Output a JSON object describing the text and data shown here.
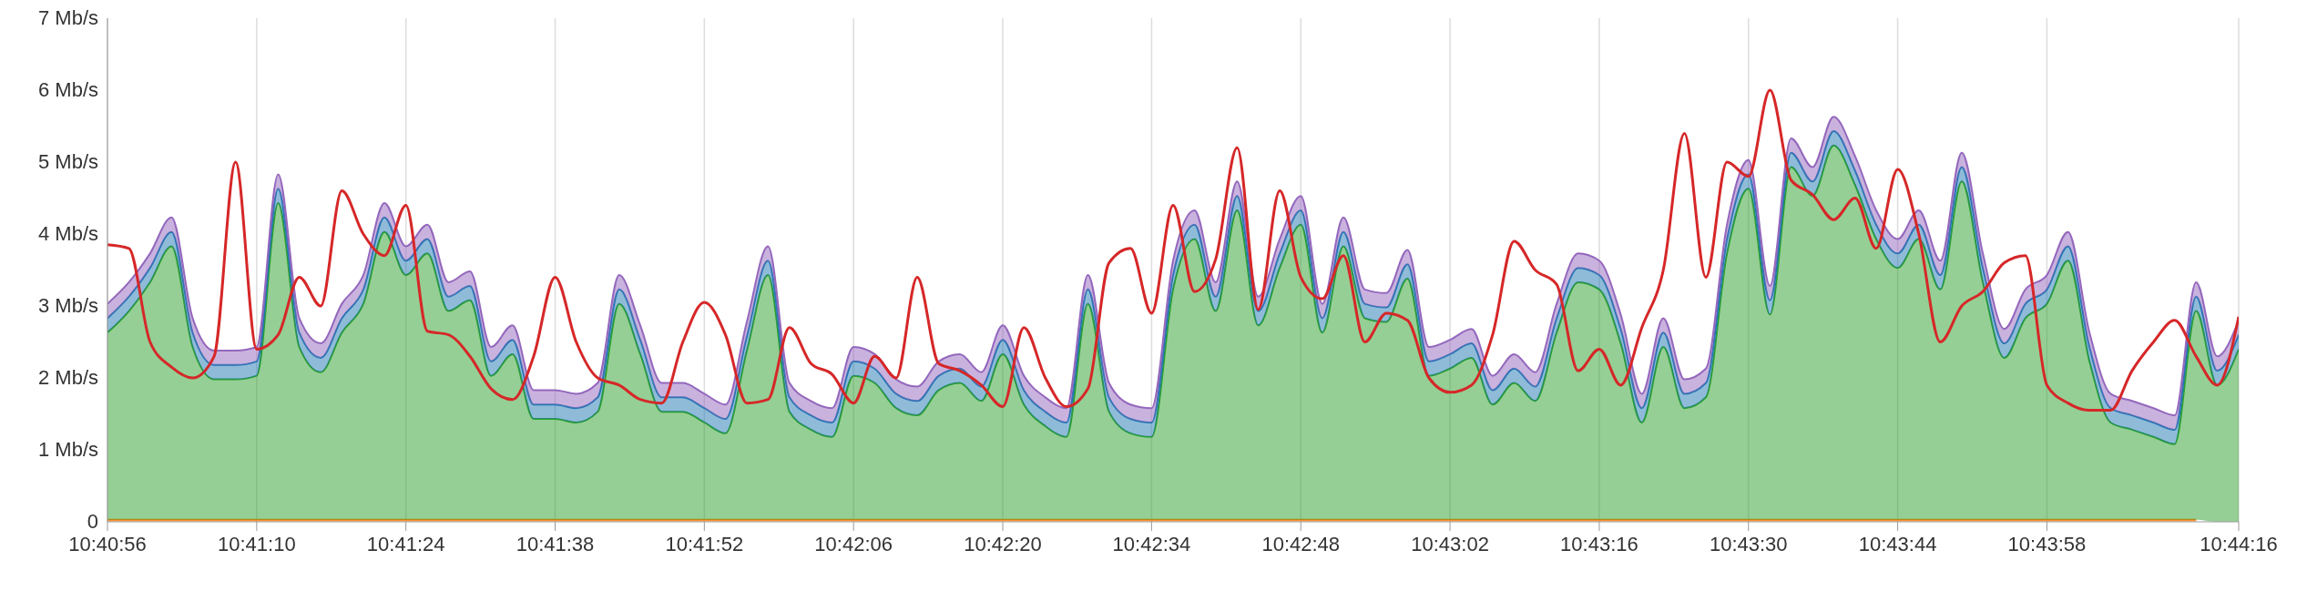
{
  "chart_data": {
    "type": "area",
    "stacked": true,
    "grid": true,
    "legend": false,
    "marker": "none",
    "x": [
      10.68222,
      10.68278,
      10.68333,
      10.68389,
      10.68444,
      10.685,
      10.68556,
      10.68611,
      10.68667,
      10.68722,
      10.68778,
      10.68833,
      10.68889,
      10.68944,
      10.69,
      10.69056,
      10.69111,
      10.69167,
      10.69222,
      10.69278,
      10.69333,
      10.69389,
      10.69444,
      10.695,
      10.69556,
      10.69611,
      10.69667,
      10.69722,
      10.69778,
      10.69833,
      10.69889,
      10.69944,
      10.7,
      10.70056,
      10.70111,
      10.70167,
      10.70222,
      10.70278,
      10.70333,
      10.70389,
      10.70444,
      10.705,
      10.70556,
      10.70611,
      10.70667,
      10.70722,
      10.70778,
      10.70833,
      10.70889,
      10.70944,
      10.71,
      10.71056,
      10.71111,
      10.71167,
      10.71222,
      10.71278,
      10.71333,
      10.71389,
      10.71444,
      10.715,
      10.71556,
      10.71611,
      10.71667,
      10.71722,
      10.71778,
      10.71833,
      10.71889,
      10.71944,
      10.72,
      10.72056,
      10.72111,
      10.72167,
      10.72222,
      10.72278,
      10.72333,
      10.72389,
      10.72444,
      10.725,
      10.72556,
      10.72611,
      10.72667,
      10.72722,
      10.72778,
      10.72833,
      10.72889,
      10.72944,
      10.73,
      10.73056,
      10.73111,
      10.73167,
      10.73222,
      10.73278,
      10.73333,
      10.73389,
      10.73444,
      10.735,
      10.73556,
      10.73611,
      10.73667,
      10.73722,
      10.73778
    ],
    "xlim": [
      10.68222,
      10.73778
    ],
    "xticks": [
      {
        "value": 10.68222,
        "label": "10:40:56"
      },
      {
        "value": 10.68611,
        "label": "10:41:10"
      },
      {
        "value": 10.69,
        "label": "10:41:24"
      },
      {
        "value": 10.69389,
        "label": "10:41:38"
      },
      {
        "value": 10.69778,
        "label": "10:41:52"
      },
      {
        "value": 10.70167,
        "label": "10:42:06"
      },
      {
        "value": 10.70556,
        "label": "10:42:20"
      },
      {
        "value": 10.70944,
        "label": "10:42:34"
      },
      {
        "value": 10.71333,
        "label": "10:42:48"
      },
      {
        "value": 10.71722,
        "label": "10:43:02"
      },
      {
        "value": 10.72111,
        "label": "10:43:16"
      },
      {
        "value": 10.725,
        "label": "10:43:30"
      },
      {
        "value": 10.72889,
        "label": "10:43:44"
      },
      {
        "value": 10.73278,
        "label": "10:43:58"
      },
      {
        "value": 10.73778,
        "label": "10:44:16"
      }
    ],
    "ylim": [
      0,
      7
    ],
    "yticks": [
      0,
      {
        "value": 1,
        "label": "1 Mb/s"
      },
      {
        "value": 2,
        "label": "2 Mb/s"
      },
      {
        "value": 3,
        "label": "3 Mb/s"
      },
      {
        "value": 4,
        "label": "4 Mb/s"
      },
      {
        "value": 5,
        "label": "5 Mb/s"
      },
      {
        "value": 6,
        "label": "6 Mb/s"
      },
      {
        "value": 7,
        "label": "7 Mb/s"
      }
    ],
    "series": [
      {
        "color": "#ff7f0e",
        "values": [
          0.03,
          0.03,
          0.03,
          0.03,
          0.03,
          0.03,
          0.03,
          0.03,
          0.03,
          0.03,
          0.03,
          0.03,
          0.03,
          0.03,
          0.03,
          0.03,
          0.03,
          0.03,
          0.03,
          0.03,
          0.03,
          0.03,
          0.03,
          0.03,
          0.03,
          0.03,
          0.03,
          0.03,
          0.03,
          0.03,
          0.03,
          0.03,
          0.03,
          0.03,
          0.03,
          0.03,
          0.03,
          0.03,
          0.03,
          0.03,
          0.03,
          0.03,
          0.03,
          0.03,
          0.03,
          0.03,
          0.03,
          0.03,
          0.03,
          0.03,
          0.03,
          0.03,
          0.03,
          0.03,
          0.03,
          0.03,
          0.03,
          0.03,
          0.03,
          0.03,
          0.03,
          0.03,
          0.03,
          0.03,
          0.03,
          0.03,
          0.03,
          0.03,
          0.03,
          0.03,
          0.03,
          0.03,
          0.03,
          0.03,
          0.03,
          0.03,
          0.03,
          0.03,
          0.03,
          0.03,
          0.03,
          0.03,
          0.03,
          0.03,
          0.03,
          0.03,
          0.03,
          0.03,
          0.03,
          0.03,
          0.03,
          0.03,
          0.03,
          0.03,
          0.03,
          0.03,
          0.03,
          0.03,
          0.03,
          null,
          null
        ]
      },
      {
        "color": "#2ca02c",
        "values": [
          2.6,
          2.9,
          3.3,
          3.8,
          2.4,
          1.95,
          1.95,
          2.0,
          4.4,
          2.4,
          2.05,
          2.6,
          3.0,
          4.0,
          3.4,
          3.7,
          2.9,
          3.05,
          2.0,
          2.3,
          1.4,
          1.4,
          1.35,
          1.5,
          3.0,
          2.3,
          1.5,
          1.5,
          1.35,
          1.2,
          2.35,
          3.4,
          1.5,
          1.25,
          1.15,
          2.0,
          1.9,
          1.55,
          1.45,
          1.8,
          1.9,
          1.65,
          2.3,
          1.6,
          1.3,
          1.15,
          3.0,
          1.5,
          1.2,
          1.15,
          3.2,
          3.9,
          2.9,
          4.3,
          2.7,
          3.5,
          4.1,
          2.6,
          3.8,
          2.8,
          2.75,
          3.35,
          2.0,
          2.1,
          2.25,
          1.6,
          1.9,
          1.65,
          2.6,
          3.3,
          3.2,
          2.45,
          1.35,
          2.4,
          1.55,
          1.7,
          3.7,
          4.6,
          2.85,
          4.9,
          4.5,
          5.2,
          4.65,
          3.9,
          3.5,
          3.9,
          3.2,
          4.7,
          3.3,
          2.25,
          2.8,
          3.0,
          3.6,
          2.2,
          1.35,
          1.25,
          1.15,
          1.05,
          2.9,
          1.9,
          2.4
        ]
      },
      {
        "color": "#1f77b4",
        "values": [
          0.2,
          0.2,
          0.2,
          0.2,
          0.2,
          0.2,
          0.2,
          0.2,
          0.2,
          0.2,
          0.2,
          0.2,
          0.2,
          0.2,
          0.2,
          0.2,
          0.2,
          0.2,
          0.2,
          0.2,
          0.2,
          0.2,
          0.2,
          0.2,
          0.2,
          0.2,
          0.2,
          0.2,
          0.2,
          0.2,
          0.2,
          0.2,
          0.2,
          0.2,
          0.2,
          0.2,
          0.2,
          0.2,
          0.2,
          0.2,
          0.2,
          0.2,
          0.2,
          0.2,
          0.2,
          0.2,
          0.2,
          0.2,
          0.2,
          0.2,
          0.2,
          0.2,
          0.2,
          0.2,
          0.2,
          0.2,
          0.2,
          0.2,
          0.2,
          0.2,
          0.2,
          0.2,
          0.2,
          0.2,
          0.2,
          0.2,
          0.2,
          0.2,
          0.2,
          0.2,
          0.2,
          0.2,
          0.2,
          0.2,
          0.2,
          0.2,
          0.2,
          0.2,
          0.2,
          0.2,
          0.2,
          0.2,
          0.2,
          0.2,
          0.2,
          0.2,
          0.2,
          0.2,
          0.2,
          0.2,
          0.2,
          0.2,
          0.2,
          0.2,
          0.2,
          0.2,
          0.2,
          0.2,
          0.2,
          0.2,
          0.2
        ]
      },
      {
        "color": "#9467bd",
        "values": [
          0.2,
          0.2,
          0.2,
          0.2,
          0.2,
          0.2,
          0.2,
          0.2,
          0.2,
          0.2,
          0.2,
          0.2,
          0.2,
          0.2,
          0.2,
          0.2,
          0.2,
          0.2,
          0.2,
          0.2,
          0.2,
          0.2,
          0.2,
          0.2,
          0.2,
          0.2,
          0.2,
          0.2,
          0.2,
          0.2,
          0.2,
          0.2,
          0.2,
          0.2,
          0.2,
          0.2,
          0.2,
          0.2,
          0.2,
          0.2,
          0.2,
          0.2,
          0.2,
          0.2,
          0.2,
          0.2,
          0.2,
          0.2,
          0.2,
          0.2,
          0.2,
          0.2,
          0.2,
          0.2,
          0.2,
          0.2,
          0.2,
          0.2,
          0.2,
          0.2,
          0.2,
          0.2,
          0.2,
          0.2,
          0.2,
          0.2,
          0.2,
          0.2,
          0.2,
          0.2,
          0.2,
          0.2,
          0.2,
          0.2,
          0.2,
          0.2,
          0.2,
          0.2,
          0.2,
          0.2,
          0.2,
          0.2,
          0.2,
          0.2,
          0.2,
          0.2,
          0.2,
          0.2,
          0.2,
          0.2,
          0.2,
          0.2,
          0.2,
          0.2,
          0.2,
          0.2,
          0.2,
          0.2,
          0.2,
          0.2,
          0.2
        ]
      },
      {
        "type": "line",
        "color": "#d62728",
        "values": [
          3.85,
          3.8,
          2.5,
          2.15,
          2.0,
          2.3,
          5.0,
          2.4,
          2.6,
          3.4,
          3.0,
          4.6,
          4.0,
          3.7,
          4.4,
          2.65,
          2.6,
          2.3,
          1.85,
          1.7,
          2.3,
          3.4,
          2.5,
          2.0,
          1.9,
          1.7,
          1.65,
          2.5,
          3.05,
          2.6,
          1.65,
          1.7,
          2.7,
          2.2,
          2.05,
          1.65,
          2.3,
          2.0,
          3.4,
          2.2,
          2.1,
          1.9,
          1.6,
          2.7,
          2.0,
          1.6,
          1.85,
          3.6,
          3.8,
          2.9,
          4.4,
          3.2,
          3.65,
          5.2,
          2.95,
          4.6,
          3.4,
          3.1,
          3.7,
          2.5,
          2.9,
          2.8,
          2.0,
          1.8,
          1.9,
          2.6,
          3.9,
          3.5,
          3.3,
          2.1,
          2.4,
          1.9,
          2.7,
          3.5,
          5.4,
          3.4,
          5.0,
          4.8,
          6.0,
          4.75,
          4.55,
          4.2,
          4.5,
          3.8,
          4.9,
          4.0,
          2.5,
          3.0,
          3.2,
          3.6,
          3.7,
          1.9,
          1.65,
          1.55,
          1.55,
          2.1,
          2.5,
          2.8,
          2.3,
          1.9,
          2.85
        ]
      }
    ]
  }
}
